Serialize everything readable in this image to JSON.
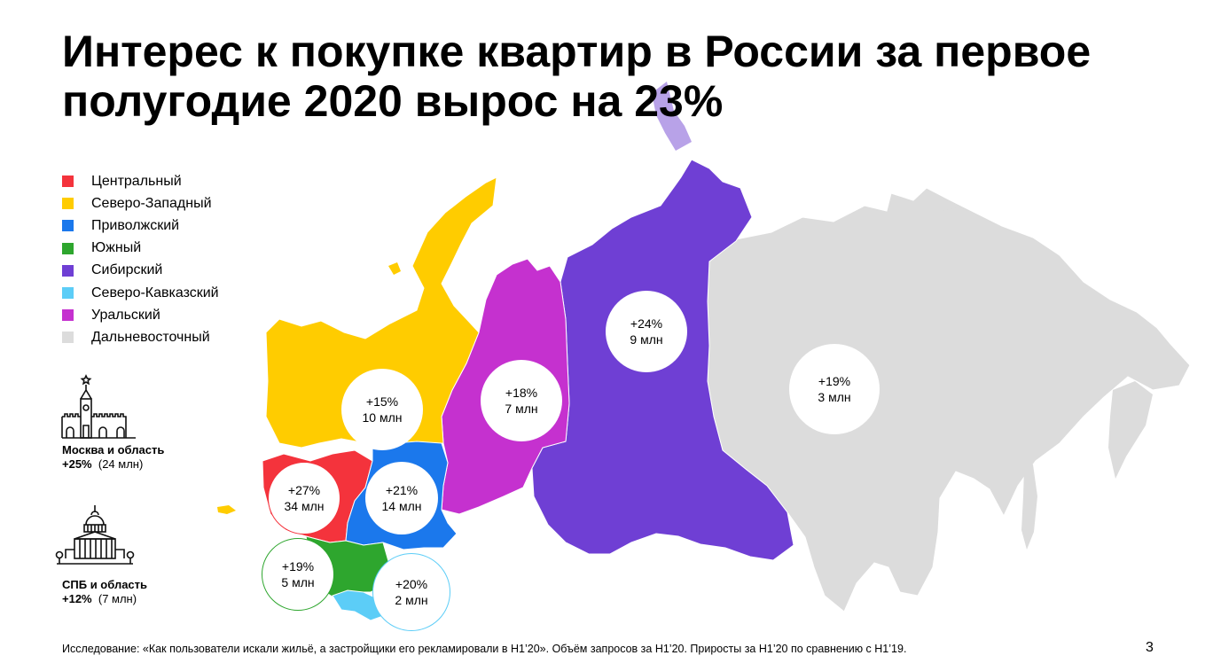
{
  "title": "Интерес к покупке квартир в России за первое полугодие 2020 вырос на 23%",
  "legend": [
    {
      "label": "Центральный",
      "color": "#f4333c"
    },
    {
      "label": "Северо-Западный",
      "color": "#ffcc00"
    },
    {
      "label": "Приволжский",
      "color": "#1b78ec"
    },
    {
      "label": "Южный",
      "color": "#2ea62e"
    },
    {
      "label": "Сибирский",
      "color": "#6f3fd4"
    },
    {
      "label": "Северо-Кавказский",
      "color": "#5ccdf7"
    },
    {
      "label": "Уральский",
      "color": "#c531cf"
    },
    {
      "label": "Дальневосточный",
      "color": "#dcdcdc"
    }
  ],
  "moscow": {
    "title": "Москва и область",
    "growth": "+25%",
    "volume": "(24 млн)",
    "icon": "kremlin-icon"
  },
  "spb": {
    "title": "СПБ и область",
    "growth": "+12%",
    "volume": "(7 млн)",
    "icon": "st-isaac-cathedral-icon"
  },
  "regions": {
    "northwest": {
      "growth": "+15%",
      "volume": "10 млн"
    },
    "ural": {
      "growth": "+18%",
      "volume": "7 млн"
    },
    "siberia": {
      "growth": "+24%",
      "volume": "9 млн"
    },
    "fareast": {
      "growth": "+19%",
      "volume": "3 млн"
    },
    "central": {
      "growth": "+27%",
      "volume": "34 млн"
    },
    "volga": {
      "growth": "+21%",
      "volume": "14 млн"
    },
    "south": {
      "growth": "+19%",
      "volume": "5 млн"
    },
    "caucasus": {
      "growth": "+20%",
      "volume": "2 млн"
    }
  },
  "footnote": "Исследование: «Как пользователи искали жильё, а застройщики его рекламировали в H1’20». Объём запросов за H1’20. Приросты за H1’20 по сравнению с H1’19.",
  "page_number": "3"
}
